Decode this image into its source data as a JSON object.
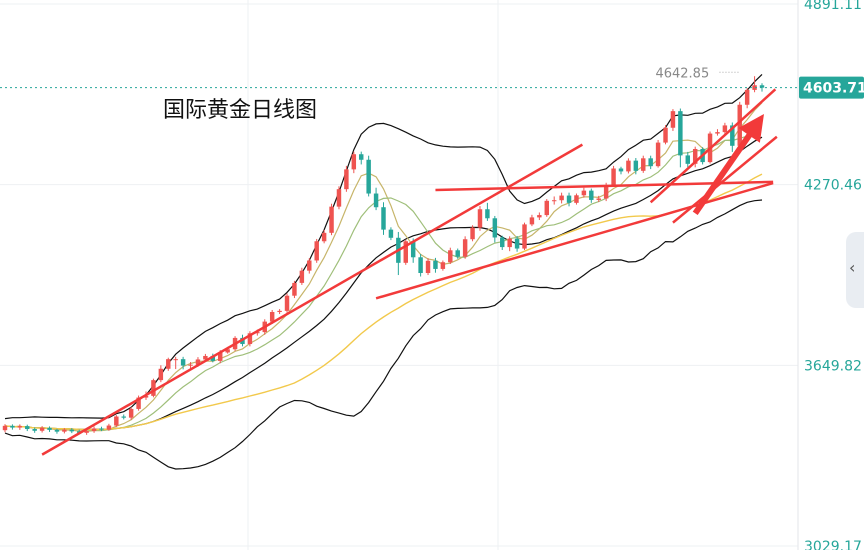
{
  "chart_data": {
    "type": "candlestick",
    "title": "国际黄金日线图",
    "y_ticks": [
      4891.11,
      4270.46,
      3649.82,
      3029.17
    ],
    "y_tick_labels": [
      "4891.11",
      "4270.46",
      "3649.82",
      "3029.17"
    ],
    "ylim": [
      3029.17,
      4891.11
    ],
    "current_price": 4603.71,
    "current_price_label": "4603.71",
    "high_marker": 4642.85,
    "high_marker_label": "4642.85",
    "grid": true,
    "colors": {
      "up": "#ef5350",
      "down": "#26a69a",
      "trendline": "#f23a3a",
      "band": "#111111",
      "ma_fast": "#c7b56a",
      "ma_slow": "#f2c94c"
    },
    "candles": [
      [
        3427,
        3442,
        3420,
        3448
      ],
      [
        3442,
        3436,
        3429,
        3447
      ],
      [
        3436,
        3441,
        3428,
        3447
      ],
      [
        3441,
        3431,
        3424,
        3446
      ],
      [
        3431,
        3425,
        3418,
        3436
      ],
      [
        3425,
        3435,
        3419,
        3441
      ],
      [
        3435,
        3428,
        3421,
        3440
      ],
      [
        3428,
        3422,
        3415,
        3432
      ],
      [
        3422,
        3429,
        3416,
        3434
      ],
      [
        3429,
        3423,
        3417,
        3434
      ],
      [
        3423,
        3418,
        3413,
        3429
      ],
      [
        3418,
        3424,
        3411,
        3430
      ],
      [
        3424,
        3433,
        3418,
        3440
      ],
      [
        3433,
        3429,
        3424,
        3439
      ],
      [
        3429,
        3443,
        3425,
        3449
      ],
      [
        3443,
        3474,
        3438,
        3479
      ],
      [
        3474,
        3470,
        3464,
        3481
      ],
      [
        3470,
        3500,
        3463,
        3507
      ],
      [
        3500,
        3539,
        3494,
        3546
      ],
      [
        3539,
        3545,
        3531,
        3560
      ],
      [
        3545,
        3599,
        3540,
        3604
      ],
      [
        3599,
        3638,
        3592,
        3650
      ],
      [
        3638,
        3671,
        3631,
        3676
      ],
      [
        3671,
        3671,
        3637,
        3679
      ],
      [
        3671,
        3649,
        3636,
        3679
      ],
      [
        3649,
        3652,
        3636,
        3661
      ],
      [
        3652,
        3670,
        3645,
        3678
      ],
      [
        3670,
        3682,
        3663,
        3689
      ],
      [
        3682,
        3665,
        3660,
        3690
      ],
      [
        3665,
        3694,
        3657,
        3702
      ],
      [
        3694,
        3705,
        3690,
        3713
      ],
      [
        3705,
        3744,
        3699,
        3750
      ],
      [
        3744,
        3723,
        3715,
        3755
      ],
      [
        3723,
        3760,
        3715,
        3767
      ],
      [
        3760,
        3764,
        3752,
        3773
      ],
      [
        3764,
        3800,
        3755,
        3808
      ],
      [
        3800,
        3833,
        3792,
        3840
      ],
      [
        3833,
        3837,
        3826,
        3843
      ],
      [
        3837,
        3889,
        3830,
        3897
      ],
      [
        3889,
        3933,
        3881,
        3940
      ],
      [
        3933,
        3975,
        3926,
        3985
      ],
      [
        3975,
        4010,
        3965,
        4018
      ],
      [
        4010,
        4076,
        4002,
        4084
      ],
      [
        4076,
        4105,
        4069,
        4115
      ],
      [
        4105,
        4195,
        4097,
        4205
      ],
      [
        4195,
        4255,
        4186,
        4265
      ],
      [
        4255,
        4323,
        4246,
        4335
      ],
      [
        4323,
        4375,
        4310,
        4384
      ],
      [
        4375,
        4356,
        4340,
        4384
      ],
      [
        4356,
        4240,
        4230,
        4370
      ],
      [
        4240,
        4193,
        4183,
        4260
      ],
      [
        4193,
        4116,
        4098,
        4210
      ],
      [
        4116,
        4088,
        4080,
        4124
      ],
      [
        4088,
        4002,
        3960,
        4108
      ],
      [
        4002,
        4076,
        3995,
        4082
      ],
      [
        4076,
        4021,
        4002,
        4086
      ],
      [
        4021,
        3967,
        3955,
        4032
      ],
      [
        3967,
        4009,
        3960,
        4018
      ],
      [
        4009,
        3981,
        3968,
        4019
      ],
      [
        3981,
        4004,
        3975,
        4010
      ],
      [
        4004,
        4045,
        3998,
        4054
      ],
      [
        4045,
        4023,
        4016,
        4051
      ],
      [
        4023,
        4083,
        4016,
        4093
      ],
      [
        4083,
        4123,
        4076,
        4131
      ],
      [
        4123,
        4186,
        4112,
        4197
      ],
      [
        4186,
        4155,
        4146,
        4208
      ],
      [
        4155,
        4089,
        4072,
        4163
      ],
      [
        4089,
        4056,
        4046,
        4095
      ],
      [
        4056,
        4085,
        4042,
        4093
      ],
      [
        4085,
        4051,
        4040,
        4094
      ],
      [
        4051,
        4134,
        4046,
        4140
      ],
      [
        4134,
        4158,
        4128,
        4167
      ],
      [
        4158,
        4166,
        4149,
        4175
      ],
      [
        4166,
        4215,
        4160,
        4221
      ],
      [
        4215,
        4217,
        4202,
        4230
      ],
      [
        4217,
        4233,
        4206,
        4243
      ],
      [
        4233,
        4208,
        4196,
        4243
      ],
      [
        4208,
        4234,
        4202,
        4240
      ],
      [
        4234,
        4250,
        4226,
        4260
      ],
      [
        4250,
        4218,
        4208,
        4257
      ],
      [
        4218,
        4223,
        4211,
        4232
      ],
      [
        4223,
        4269,
        4214,
        4277
      ],
      [
        4269,
        4326,
        4263,
        4335
      ],
      [
        4326,
        4316,
        4306,
        4332
      ],
      [
        4316,
        4353,
        4309,
        4361
      ],
      [
        4353,
        4318,
        4306,
        4362
      ],
      [
        4318,
        4361,
        4311,
        4370
      ],
      [
        4361,
        4334,
        4324,
        4370
      ],
      [
        4334,
        4415,
        4329,
        4424
      ],
      [
        4415,
        4466,
        4409,
        4475
      ],
      [
        4466,
        4523,
        4455,
        4530
      ],
      [
        4523,
        4371,
        4330,
        4532
      ],
      [
        4371,
        4342,
        4330,
        4383
      ],
      [
        4342,
        4393,
        4330,
        4401
      ],
      [
        4393,
        4348,
        4340,
        4399
      ],
      [
        4348,
        4446,
        4343,
        4453
      ],
      [
        4446,
        4451,
        4439,
        4461
      ],
      [
        4451,
        4474,
        4440,
        4483
      ],
      [
        4474,
        4404,
        4383,
        4484
      ],
      [
        4404,
        4545,
        4396,
        4555
      ],
      [
        4545,
        4596,
        4533,
        4602
      ],
      [
        4596,
        4612,
        4588,
        4643
      ],
      [
        4612,
        4603.71,
        4590,
        4619
      ]
    ]
  }
}
